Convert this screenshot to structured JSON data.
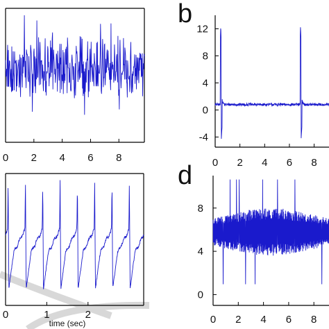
{
  "figure": {
    "colors": {
      "trace": "#1a1acc",
      "frame": "#000000",
      "watermark": "#d8d8d8"
    }
  },
  "chart_data": [
    {
      "id": "a",
      "type": "line",
      "panel_label": "",
      "title": "",
      "xlabel": "",
      "ylabel": "",
      "xlim": [
        0,
        9.8
      ],
      "ylim": [
        -5,
        5
      ],
      "xticks": [
        0,
        2,
        4,
        6,
        8
      ],
      "xtick_labels": [
        "0",
        "2",
        "4",
        "6",
        "8"
      ],
      "yticks": [],
      "ytick_labels": [],
      "series": [
        {
          "pattern": "random-noise",
          "duration_sec": 9.8,
          "mean": 0.6,
          "amplitude": 2.6,
          "samples": 400
        }
      ]
    },
    {
      "id": "b",
      "type": "line",
      "panel_label": "b",
      "title": "",
      "xlabel": "",
      "ylabel": "",
      "xlim": [
        0,
        9.2
      ],
      "ylim": [
        -5.5,
        14
      ],
      "xticks": [
        0,
        2,
        4,
        6,
        8
      ],
      "xtick_labels": [
        "0",
        "2",
        "4",
        "6",
        "8"
      ],
      "yticks": [
        12,
        8,
        4,
        0,
        -4
      ],
      "ytick_labels": [
        "12",
        "8",
        "4",
        "0",
        "-4"
      ],
      "series": [
        {
          "pattern": "baseline-with-spikes",
          "duration_sec": 9.2,
          "baseline": 0.8,
          "noise": 0.2,
          "spikes_at_sec": [
            0.45,
            6.9
          ],
          "spike_peak": 12.5,
          "spike_trough": -4.5,
          "samples": 500
        }
      ]
    },
    {
      "id": "c",
      "type": "line",
      "panel_label": "",
      "title": "",
      "xlabel": "time (sec)",
      "ylabel": "",
      "xlim": [
        0,
        3.35
      ],
      "ylim": [
        -1,
        1
      ],
      "xticks": [
        0,
        1,
        2
      ],
      "xtick_labels": [
        "0",
        "1",
        "2"
      ],
      "yticks": [],
      "ytick_labels": [],
      "series": [
        {
          "pattern": "periodic-spikes",
          "duration_sec": 3.35,
          "period_sec": 0.42,
          "first_spike_sec": 0.05,
          "samples": 500
        }
      ]
    },
    {
      "id": "d",
      "type": "line",
      "panel_label": "d",
      "title": "",
      "xlabel": "",
      "ylabel": "",
      "xlim": [
        0,
        9.2
      ],
      "ylim": [
        -1,
        11
      ],
      "xticks": [
        0,
        2,
        4,
        6,
        8
      ],
      "xtick_labels": [
        "0",
        "2",
        "4",
        "6",
        "8"
      ],
      "yticks": [
        8,
        4,
        0
      ],
      "ytick_labels": [
        "8",
        "4",
        "0"
      ],
      "series": [
        {
          "pattern": "dense-oscillation",
          "duration_sec": 9.2,
          "center": 5.8,
          "amplitude": 2.2,
          "samples": 600
        }
      ]
    }
  ]
}
